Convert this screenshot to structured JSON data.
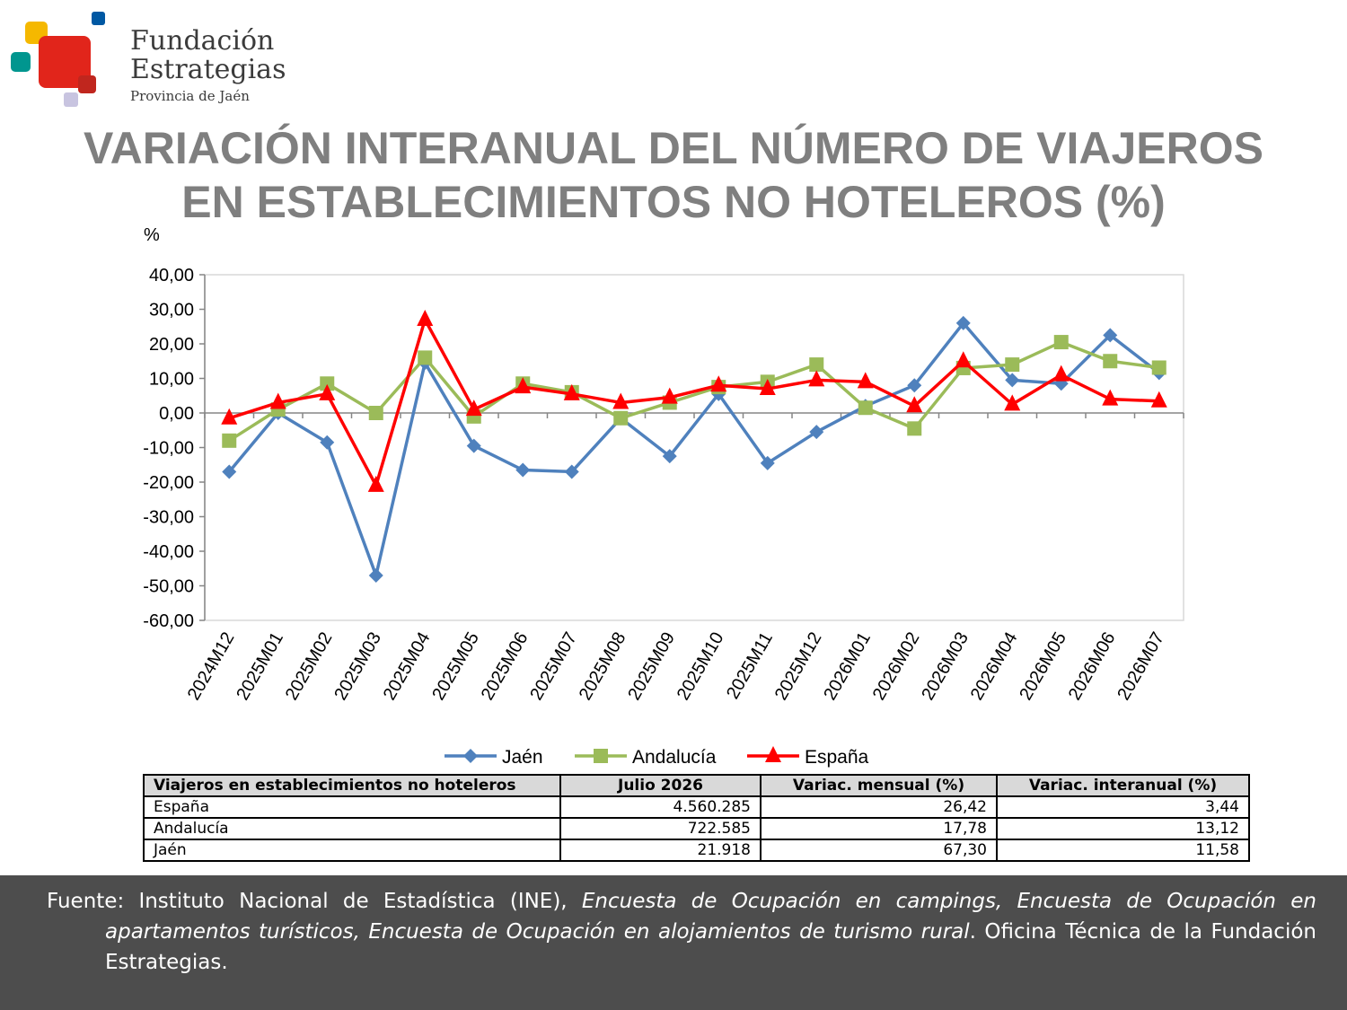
{
  "logo": {
    "name_line1": "Fundación",
    "name_line2": "Estrategias",
    "subtitle": "Provincia de Jaén",
    "colors": [
      "#f5b800",
      "#0058a3",
      "#00968f",
      "#e1251b",
      "#c8c4e0"
    ]
  },
  "title": {
    "line1": "VARIACIÓN INTERANUAL DEL NÚMERO DE VIAJEROS",
    "line2": "EN ESTABLECIMIENTOS NO HOTELEROS (%)"
  },
  "chart_data": {
    "type": "line",
    "ylabel": "%",
    "ylim": [
      -60,
      40
    ],
    "yticks": [
      "40,00",
      "30,00",
      "20,00",
      "10,00",
      "0,00",
      "-10,00",
      "-20,00",
      "-30,00",
      "-40,00",
      "-50,00",
      "-60,00"
    ],
    "categories": [
      "2024M12",
      "2025M01",
      "2025M02",
      "2025M03",
      "2025M04",
      "2025M05",
      "2025M06",
      "2025M07",
      "2025M08",
      "2025M09",
      "2025M10",
      "2025M11",
      "2025M12",
      "2026M01",
      "2026M02",
      "2026M03",
      "2026M04",
      "2026M05",
      "2026M06",
      "2026M07"
    ],
    "grid": false,
    "legend": "bottom",
    "series": [
      {
        "name": "Jaén",
        "color": "#4f81bd",
        "marker": "diamond",
        "values": [
          -17.0,
          0.0,
          -8.5,
          -47.0,
          14.5,
          -9.5,
          -16.5,
          -17.0,
          -1.5,
          -12.5,
          5.5,
          -14.5,
          -5.5,
          2.0,
          8.0,
          26.0,
          9.5,
          8.5,
          22.5,
          11.58
        ]
      },
      {
        "name": "Andalucía",
        "color": "#9bbb59",
        "marker": "square",
        "values": [
          -8.0,
          1.0,
          8.5,
          0.0,
          16.0,
          -1.0,
          8.5,
          6.0,
          -1.5,
          3.0,
          7.5,
          9.0,
          14.0,
          1.5,
          -4.5,
          13.0,
          14.0,
          20.5,
          15.0,
          13.12
        ]
      },
      {
        "name": "España",
        "color": "#ff0000",
        "marker": "triangle",
        "values": [
          -1.5,
          3.0,
          5.5,
          -21.0,
          27.0,
          1.0,
          7.5,
          5.5,
          3.0,
          4.5,
          8.0,
          7.0,
          9.5,
          9.0,
          2.0,
          15.0,
          2.5,
          11.0,
          4.0,
          3.44
        ]
      }
    ]
  },
  "table": {
    "headers": [
      "Viajeros en establecimientos no hoteleros",
      "Julio 2026",
      "Variac. mensual (%)",
      "Variac. interanual (%)"
    ],
    "rows": [
      [
        "España",
        "4.560.285",
        "26,42",
        "3,44"
      ],
      [
        "Andalucía",
        "722.585",
        "17,78",
        "13,12"
      ],
      [
        "Jaén",
        "21.918",
        "67,30",
        "11,58"
      ]
    ]
  },
  "footer": {
    "lead": "Fuente: Instituto Nacional de Estadística (INE), ",
    "italic": "Encuesta de Ocupación en campings, Encuesta de Ocupación en apartamentos turísticos, Encuesta de Ocupación en alojamientos de turismo rural",
    "tail": ". Oficina Técnica de la Fundación Estrategias.",
    "background": "#4d4d4d"
  }
}
